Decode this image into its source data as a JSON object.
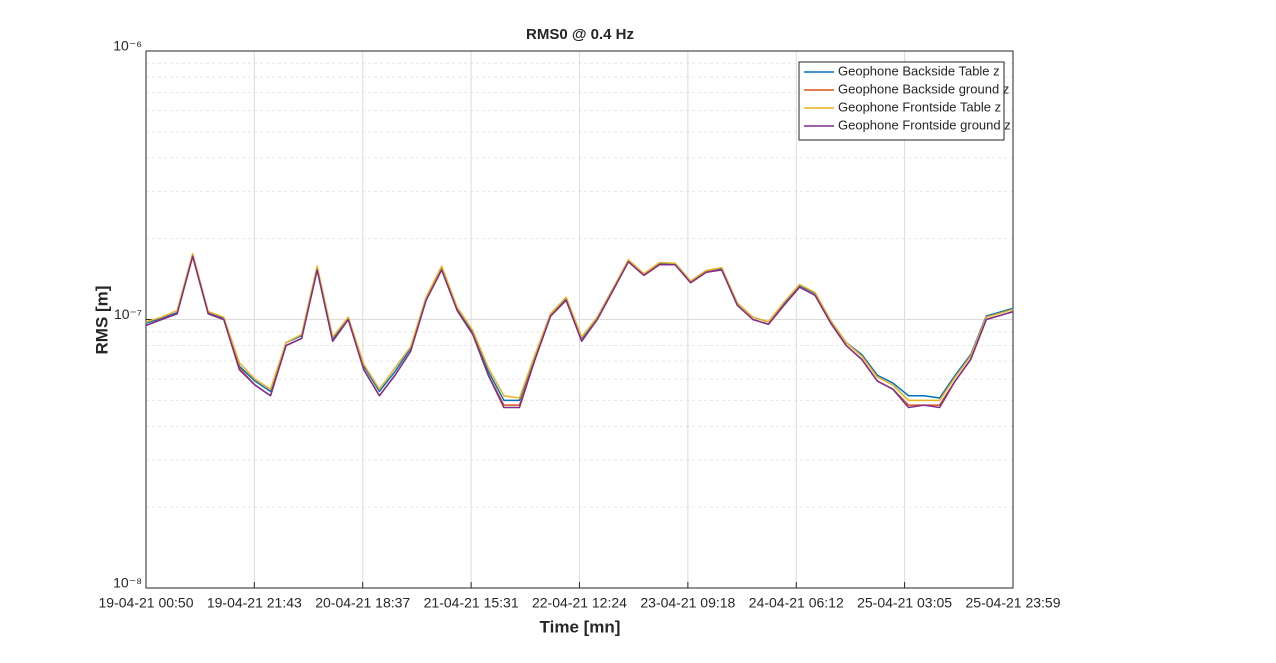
{
  "chart_data": {
    "type": "line",
    "title": "RMS0 @ 0.4 Hz",
    "xlabel": "Time [mn]",
    "ylabel": "RMS [m]",
    "ylog": true,
    "grid": true,
    "minor_grid": true,
    "legend": "upper right",
    "x": [
      "19-04-21 00:50",
      "19-04-21 03:50",
      "19-04-21 06:50",
      "19-04-21 09:50",
      "19-04-21 12:50",
      "19-04-21 15:50",
      "19-04-21 18:50",
      "19-04-21 21:50",
      "20-04-21 00:50",
      "20-04-21 03:50",
      "20-04-21 06:50",
      "20-04-21 09:50",
      "20-04-21 12:50",
      "20-04-21 15:50",
      "20-04-21 18:50",
      "20-04-21 21:50",
      "21-04-21 00:50",
      "21-04-21 03:50",
      "21-04-21 06:50",
      "21-04-21 09:50",
      "21-04-21 12:50",
      "21-04-21 15:50",
      "21-04-21 18:50",
      "21-04-21 21:50",
      "22-04-21 00:50",
      "22-04-21 03:50",
      "22-04-21 06:50",
      "22-04-21 09:50",
      "22-04-21 12:50",
      "22-04-21 15:50",
      "22-04-21 18:50",
      "22-04-21 21:50",
      "23-04-21 00:50",
      "23-04-21 03:50",
      "23-04-21 06:50",
      "23-04-21 09:50",
      "23-04-21 12:50",
      "23-04-21 15:50",
      "23-04-21 18:50",
      "23-04-21 21:50",
      "24-04-21 00:50",
      "24-04-21 03:50",
      "24-04-21 06:50",
      "24-04-21 09:50",
      "24-04-21 12:50",
      "24-04-21 15:50",
      "24-04-21 18:50",
      "24-04-21 21:50",
      "25-04-21 00:50",
      "25-04-21 03:50",
      "25-04-21 06:50",
      "25-04-21 09:50",
      "25-04-21 12:50",
      "25-04-21 15:50",
      "25-04-21 18:50",
      "25-04-21 21:50",
      "25-04-21 23:59"
    ],
    "series": [
      {
        "name": "Geophone Backside Table z",
        "color": "#0072BD",
        "values": [
          9.7e-08,
          1.01e-07,
          1.06e-07,
          1.73e-07,
          1.06e-07,
          1.01e-07,
          6.7e-08,
          5.9e-08,
          5.4e-08,
          8.2e-08,
          8.7e-08,
          1.55e-07,
          8.5e-08,
          1.01e-07,
          6.7e-08,
          5.4e-08,
          6.4e-08,
          7.8e-08,
          1.2e-07,
          1.55e-07,
          1.1e-07,
          9e-08,
          6.4e-08,
          5e-08,
          5e-08,
          7.3e-08,
          1.05e-07,
          1.2e-07,
          8.5e-08,
          1.02e-07,
          1.3e-07,
          1.65e-07,
          1.48e-07,
          1.62e-07,
          1.62e-07,
          1.39e-07,
          1.52e-07,
          1.55e-07,
          1.15e-07,
          1.02e-07,
          9.8e-08,
          1.15e-07,
          1.34e-07,
          1.25e-07,
          9.9e-08,
          8.2e-08,
          7.4e-08,
          6.2e-08,
          5.8e-08,
          5.2e-08,
          5.2e-08,
          5.1e-08,
          6.2e-08,
          7.4e-08,
          1.03e-07,
          1.07e-07,
          1.1e-07
        ]
      },
      {
        "name": "Geophone Backside ground z",
        "color": "#D95319",
        "values": [
          9.5e-08,
          1e-07,
          1.05e-07,
          1.72e-07,
          1.05e-07,
          1e-07,
          6.6e-08,
          5.7e-08,
          5.2e-08,
          8e-08,
          8.5e-08,
          1.53e-07,
          8.3e-08,
          1e-07,
          6.5e-08,
          5.2e-08,
          6.2e-08,
          7.6e-08,
          1.18e-07,
          1.53e-07,
          1.08e-07,
          8.8e-08,
          6.2e-08,
          4.8e-08,
          4.8e-08,
          7.1e-08,
          1.03e-07,
          1.18e-07,
          8.3e-08,
          1e-07,
          1.28e-07,
          1.64e-07,
          1.46e-07,
          1.6e-07,
          1.6e-07,
          1.37e-07,
          1.5e-07,
          1.53e-07,
          1.13e-07,
          1e-07,
          9.6e-08,
          1.13e-07,
          1.32e-07,
          1.23e-07,
          9.7e-08,
          8e-08,
          7.1e-08,
          5.9e-08,
          5.5e-08,
          4.8e-08,
          4.8e-08,
          4.8e-08,
          5.9e-08,
          7.1e-08,
          1e-07,
          1.04e-07,
          1.07e-07
        ]
      },
      {
        "name": "Geophone Frontside Table z",
        "color": "#EDB120",
        "values": [
          9.8e-08,
          1.02e-07,
          1.08e-07,
          1.76e-07,
          1.07e-07,
          1.02e-07,
          6.9e-08,
          6e-08,
          5.5e-08,
          8.2e-08,
          8.8e-08,
          1.58e-07,
          8.6e-08,
          1.02e-07,
          6.8e-08,
          5.5e-08,
          6.6e-08,
          7.9e-08,
          1.21e-07,
          1.58e-07,
          1.11e-07,
          9.1e-08,
          6.6e-08,
          5.2e-08,
          5.1e-08,
          7.4e-08,
          1.05e-07,
          1.21e-07,
          8.6e-08,
          1.02e-07,
          1.3e-07,
          1.67e-07,
          1.48e-07,
          1.63e-07,
          1.62e-07,
          1.39e-07,
          1.52e-07,
          1.56e-07,
          1.15e-07,
          1.02e-07,
          9.8e-08,
          1.16e-07,
          1.35e-07,
          1.26e-07,
          9.9e-08,
          8.2e-08,
          7.3e-08,
          6.1e-08,
          5.7e-08,
          5e-08,
          5e-08,
          5e-08,
          6.1e-08,
          7.3e-08,
          1.02e-07,
          1.06e-07,
          1.09e-07
        ]
      },
      {
        "name": "Geophone Frontside ground z",
        "color": "#7E2F8E",
        "values": [
          9.5e-08,
          1e-07,
          1.05e-07,
          1.72e-07,
          1.05e-07,
          1e-07,
          6.5e-08,
          5.7e-08,
          5.2e-08,
          8e-08,
          8.5e-08,
          1.53e-07,
          8.3e-08,
          1e-07,
          6.5e-08,
          5.2e-08,
          6.2e-08,
          7.6e-08,
          1.18e-07,
          1.53e-07,
          1.08e-07,
          8.8e-08,
          6.2e-08,
          4.7e-08,
          4.7e-08,
          7.1e-08,
          1.03e-07,
          1.18e-07,
          8.3e-08,
          1e-07,
          1.28e-07,
          1.64e-07,
          1.46e-07,
          1.6e-07,
          1.6e-07,
          1.37e-07,
          1.5e-07,
          1.53e-07,
          1.13e-07,
          1e-07,
          9.6e-08,
          1.13e-07,
          1.32e-07,
          1.23e-07,
          9.7e-08,
          8e-08,
          7.1e-08,
          5.9e-08,
          5.5e-08,
          4.7e-08,
          4.8e-08,
          4.7e-08,
          5.9e-08,
          7.1e-08,
          1e-07,
          1.04e-07,
          1.07e-07
        ]
      }
    ],
    "xlim": [
      "19-04-21 00:50",
      "25-04-21 23:59"
    ],
    "xticks": [
      "19-04-21 00:50",
      "19-04-21 21:43",
      "20-04-21 18:37",
      "21-04-21 15:31",
      "22-04-21 12:24",
      "23-04-21 09:18",
      "24-04-21 06:12",
      "25-04-21 03:05",
      "25-04-21 23:59"
    ],
    "ylim": [
      1e-08,
      1e-06
    ],
    "yticks": [
      {
        "value": 1e-08,
        "label": "10⁻⁸"
      },
      {
        "value": 1e-07,
        "label": "10⁻⁷"
      },
      {
        "value": 1e-06,
        "label": "10⁻⁶"
      }
    ]
  }
}
